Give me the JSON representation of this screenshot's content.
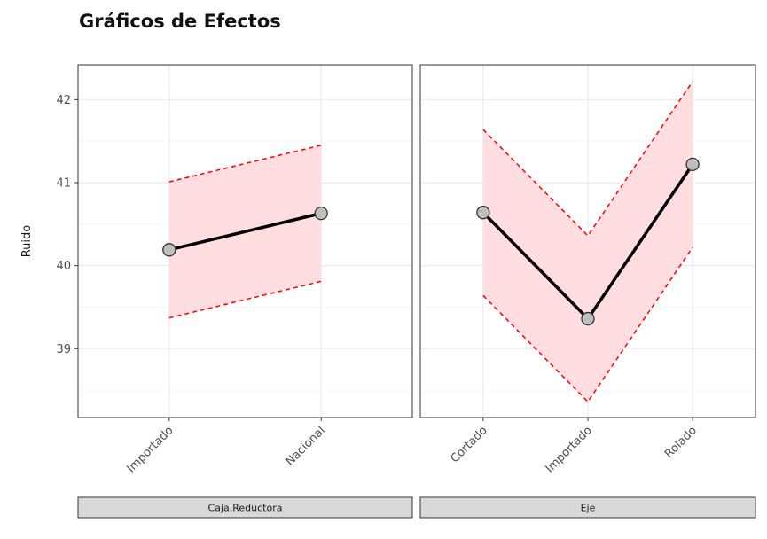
{
  "chart_data": {
    "type": "line",
    "title": "Gráficos de Efectos",
    "ylabel": "Ruido",
    "ylim": [
      38.17,
      42.42
    ],
    "yticks": [
      39,
      40,
      41,
      42
    ],
    "grid": true,
    "colors": {
      "line": "#000000",
      "point": "#bfbfbf",
      "band": "#ffdde1",
      "bound": "#ff0000"
    },
    "panels": [
      {
        "strip": "Caja.Reductora",
        "categories": [
          "Importado",
          "Nacional"
        ],
        "values": [
          40.19,
          40.63
        ],
        "lower": [
          39.37,
          39.81
        ],
        "upper": [
          41.01,
          41.45
        ]
      },
      {
        "strip": "Eje",
        "categories": [
          "Cortado",
          "Importado",
          "Rolado"
        ],
        "values": [
          40.64,
          39.36,
          41.22
        ],
        "lower": [
          39.64,
          38.36,
          40.22
        ],
        "upper": [
          41.64,
          40.36,
          42.22
        ]
      }
    ]
  }
}
